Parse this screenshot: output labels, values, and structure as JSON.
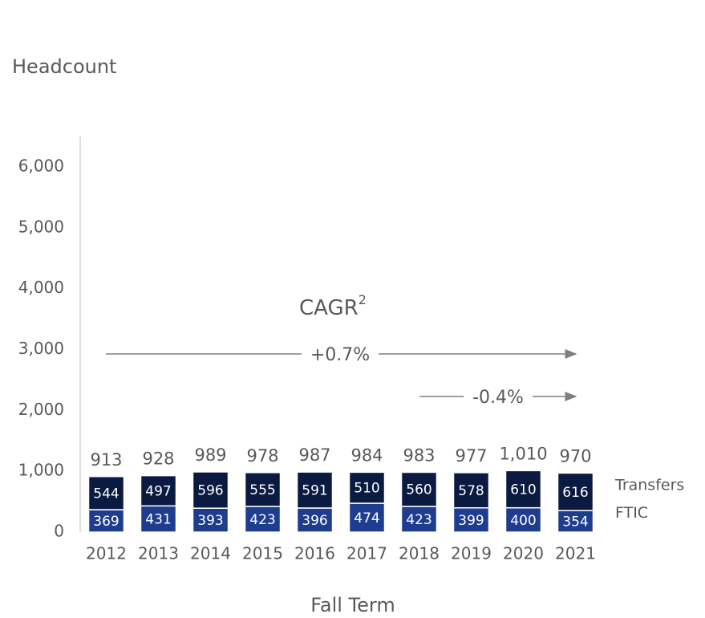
{
  "chart_data": {
    "type": "stacked-bar",
    "title": "Headcount",
    "x_label": "Fall Term",
    "categories": [
      "2012",
      "2013",
      "2014",
      "2015",
      "2016",
      "2017",
      "2018",
      "2019",
      "2020",
      "2021"
    ],
    "series": [
      {
        "name": "FTIC",
        "color": "#1f3d8f",
        "values": [
          369,
          431,
          393,
          423,
          396,
          474,
          423,
          399,
          400,
          354
        ]
      },
      {
        "name": "Transfers",
        "color": "#0b1a40",
        "values": [
          544,
          497,
          596,
          555,
          591,
          510,
          560,
          578,
          610,
          616
        ]
      }
    ],
    "totals": {
      "values": [
        913,
        928,
        989,
        978,
        987,
        984,
        983,
        977,
        1010,
        970
      ],
      "value_labels": [
        "913",
        "928",
        "989",
        "978",
        "987",
        "984",
        "983",
        "977",
        "1,010",
        "970"
      ]
    },
    "ylim": [
      0,
      6500
    ],
    "yticks": [
      0,
      {
        "value": 1000,
        "label": "1,000"
      },
      {
        "value": 2000,
        "label": "2,000"
      },
      {
        "value": 3000,
        "label": "3,000"
      },
      {
        "value": 4000,
        "label": "4,000"
      },
      {
        "value": 5000,
        "label": "5,000"
      },
      {
        "value": 6000,
        "label": "6,000"
      }
    ],
    "annotations": {
      "cagr": "CAGR",
      "cagr_sup": "2",
      "long": "+0.7%",
      "short": "-0.4%"
    }
  }
}
